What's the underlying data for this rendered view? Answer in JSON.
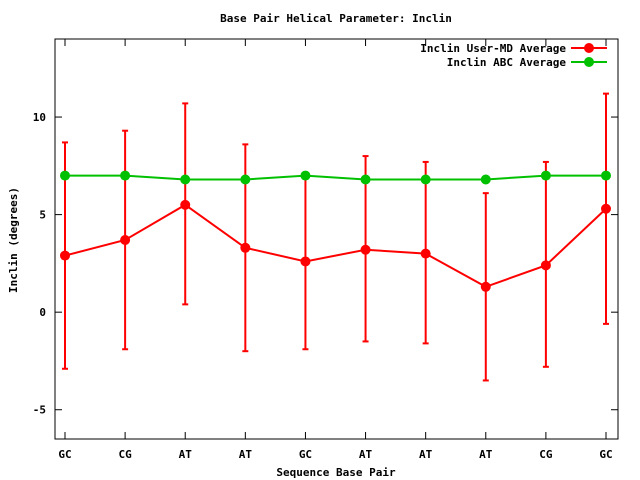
{
  "chart_data": {
    "type": "line",
    "title": "Base Pair Helical Parameter: Inclin",
    "xlabel": "Sequence Base Pair",
    "ylabel": "Inclin (degrees)",
    "categories": [
      "GC",
      "CG",
      "AT",
      "AT",
      "GC",
      "AT",
      "AT",
      "AT",
      "CG",
      "GC"
    ],
    "ylim": [
      -6.5,
      14
    ],
    "yticks": [
      -5,
      0,
      5,
      10
    ],
    "ytick_labels": [
      "-5",
      "0",
      "5",
      "10"
    ],
    "grid": false,
    "legend_position": "top-right",
    "series": [
      {
        "name": "Inclin User-MD Average",
        "color": "#ff0000",
        "values": [
          2.9,
          3.7,
          5.5,
          3.3,
          2.6,
          3.2,
          3.0,
          1.3,
          2.4,
          5.3
        ],
        "error_low": [
          -2.9,
          -1.9,
          0.4,
          -2.0,
          -1.9,
          -1.5,
          -1.6,
          -3.5,
          -2.8,
          -0.6
        ],
        "error_high": [
          8.7,
          9.3,
          10.7,
          8.6,
          7.0,
          8.0,
          7.7,
          6.1,
          7.7,
          11.2
        ]
      },
      {
        "name": "Inclin ABC Average",
        "color": "#00c000",
        "values": [
          7.0,
          7.0,
          6.8,
          6.8,
          7.0,
          6.8,
          6.8,
          6.8,
          7.0,
          7.0
        ]
      }
    ]
  }
}
